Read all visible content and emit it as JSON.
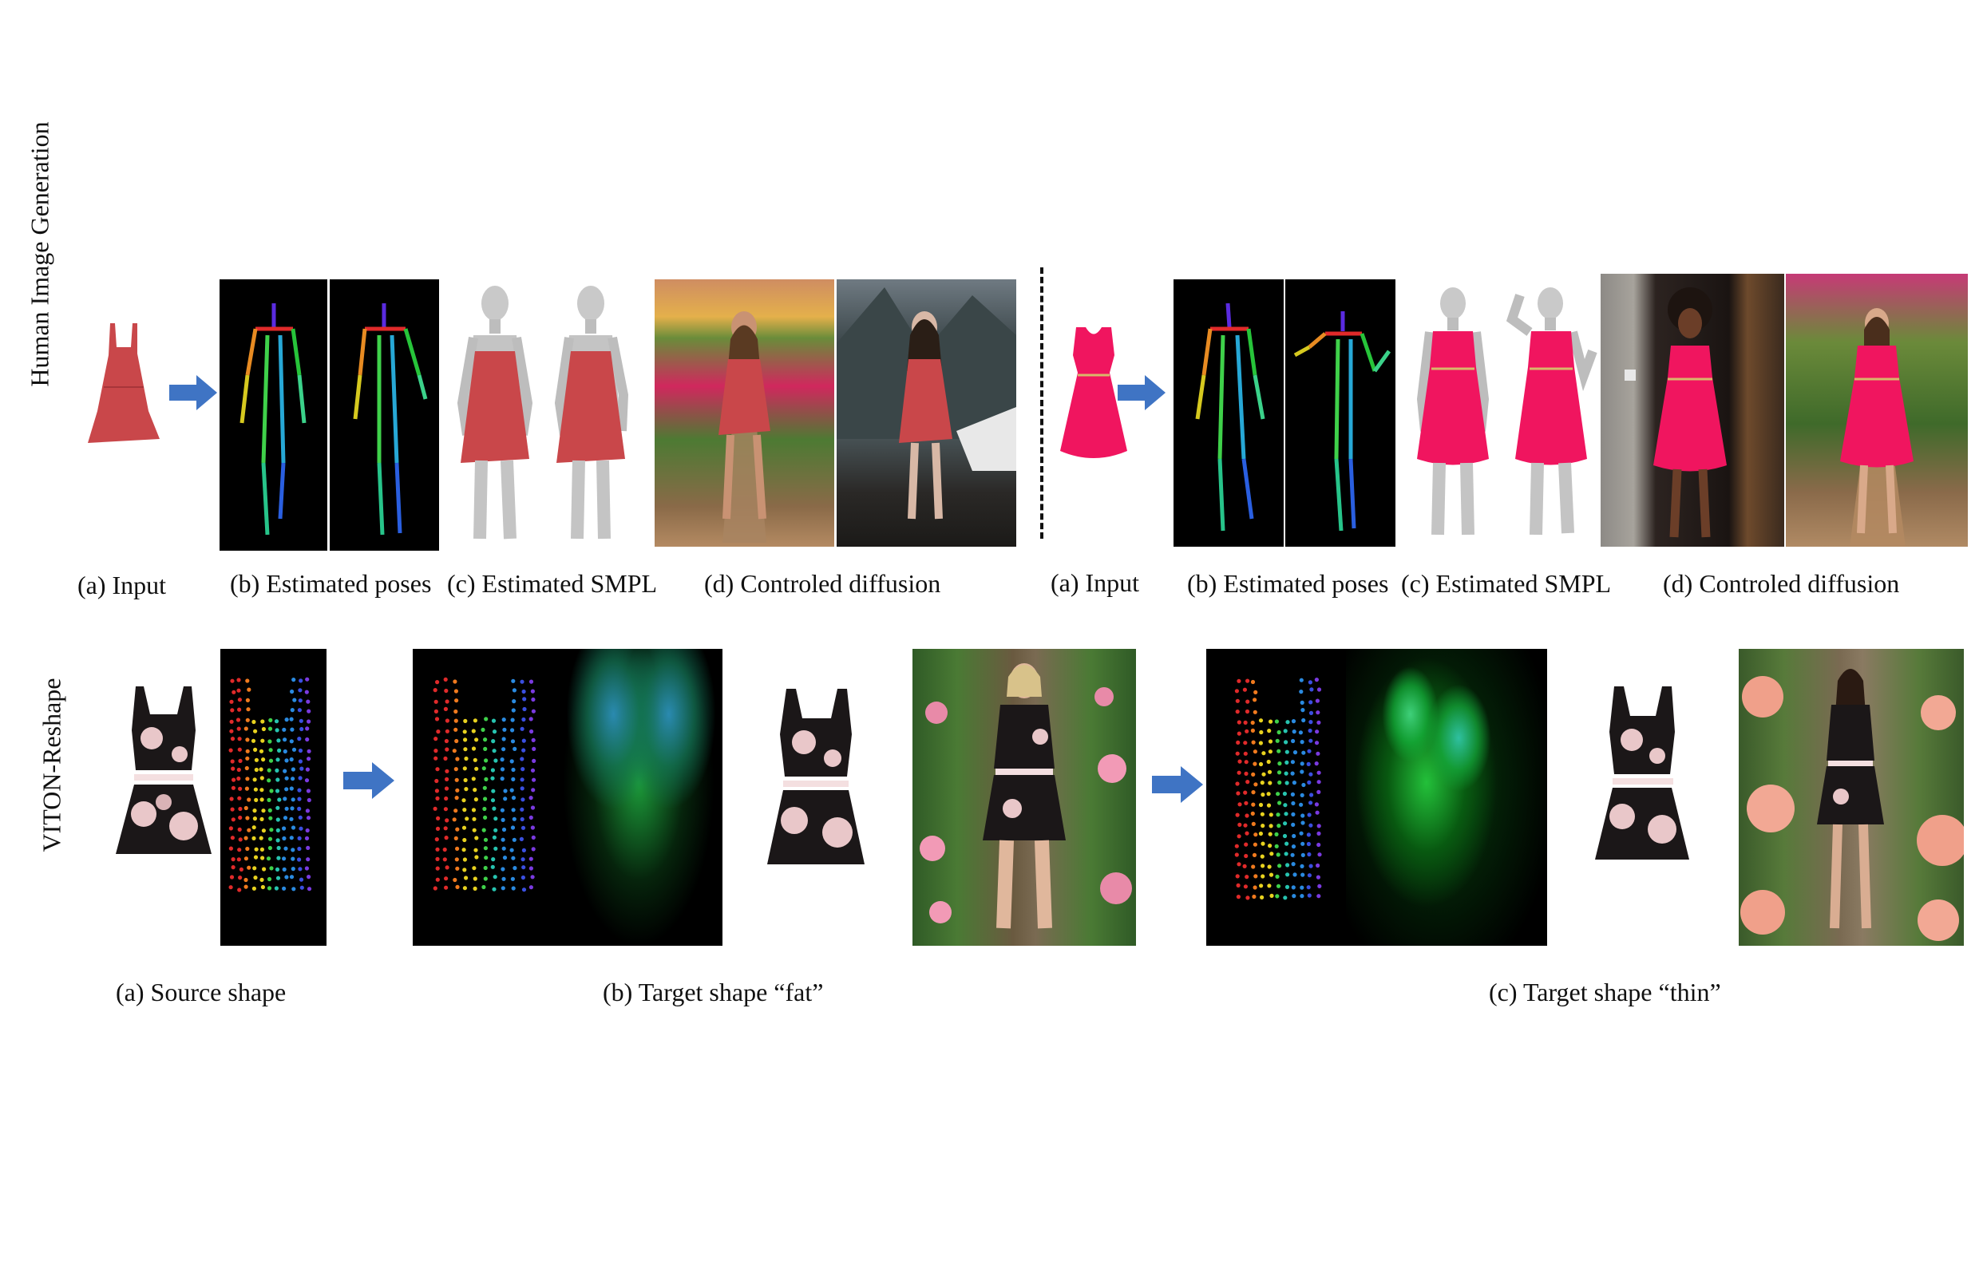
{
  "row_labels": {
    "top": "Human Image Generation",
    "bottom": "VITON-Reshape"
  },
  "top_left": {
    "captions": {
      "a": "(a) Input",
      "b": "(b) Estimated poses",
      "c": "(c) Estimated SMPL",
      "d": "(d) Controled diffusion"
    }
  },
  "top_right": {
    "captions": {
      "a": "(a) Input",
      "b": "(b) Estimated poses",
      "c": "(c) Estimated SMPL",
      "d": "(d) Controled diffusion"
    }
  },
  "bottom": {
    "captions": {
      "a": "(a) Source shape",
      "b": "(b) Target shape “fat”",
      "c": "(c) Target shape “thin”"
    }
  },
  "colors": {
    "arrow": "#3f74c4",
    "red_dress": "#c9474a",
    "pink_dress": "#f0155f",
    "skeleton_black": "#000000"
  }
}
